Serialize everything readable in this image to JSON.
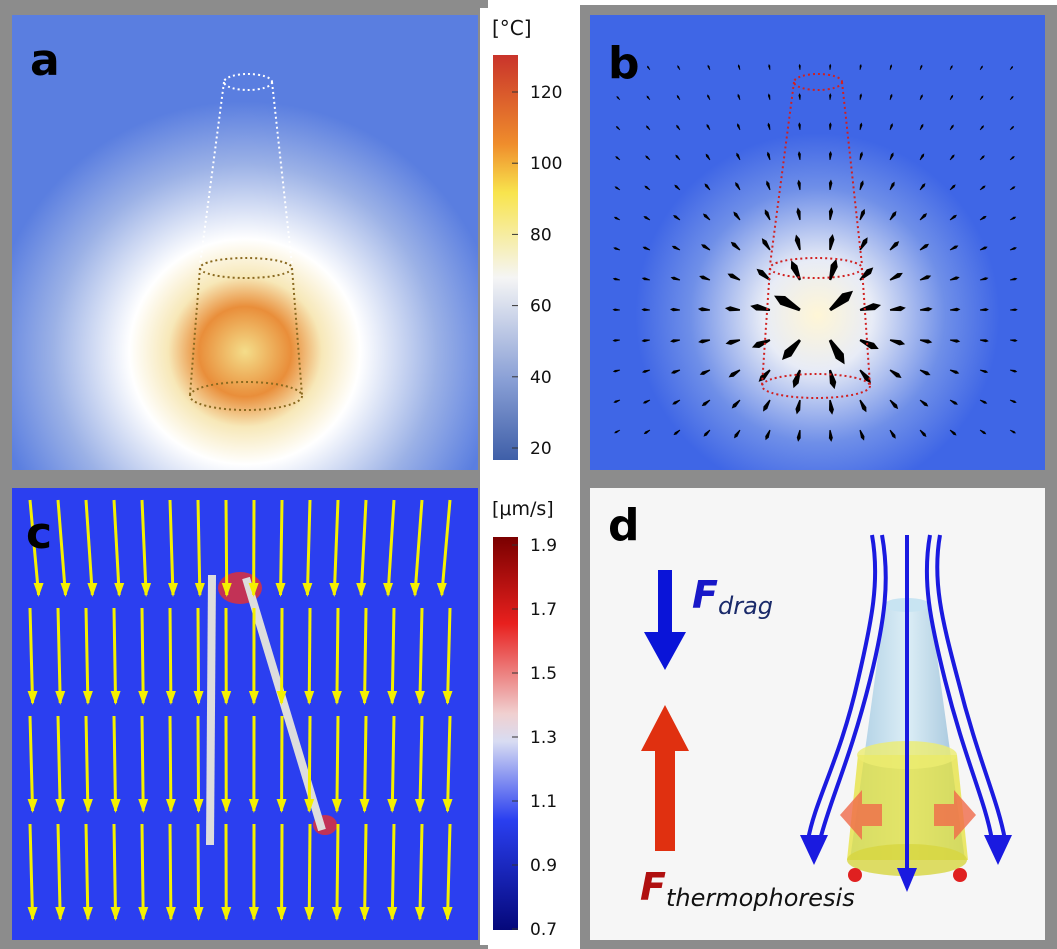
{
  "panels": {
    "a": {
      "label": "a"
    },
    "b": {
      "label": "b"
    },
    "c": {
      "label": "c"
    },
    "d": {
      "label": "d"
    }
  },
  "colorbar_temperature": {
    "unit": "[°C]",
    "ticks": [
      120,
      100,
      80,
      60,
      40,
      20
    ]
  },
  "colorbar_velocity": {
    "unit": "[μm/s]",
    "ticks": [
      1.9,
      1.7,
      1.5,
      1.3,
      1.1,
      0.9,
      0.7
    ]
  },
  "forces": {
    "drag": {
      "symbol": "F",
      "subscript": "drag"
    },
    "thermophoresis": {
      "symbol": "F",
      "subscript": "thermophoresis"
    }
  }
}
